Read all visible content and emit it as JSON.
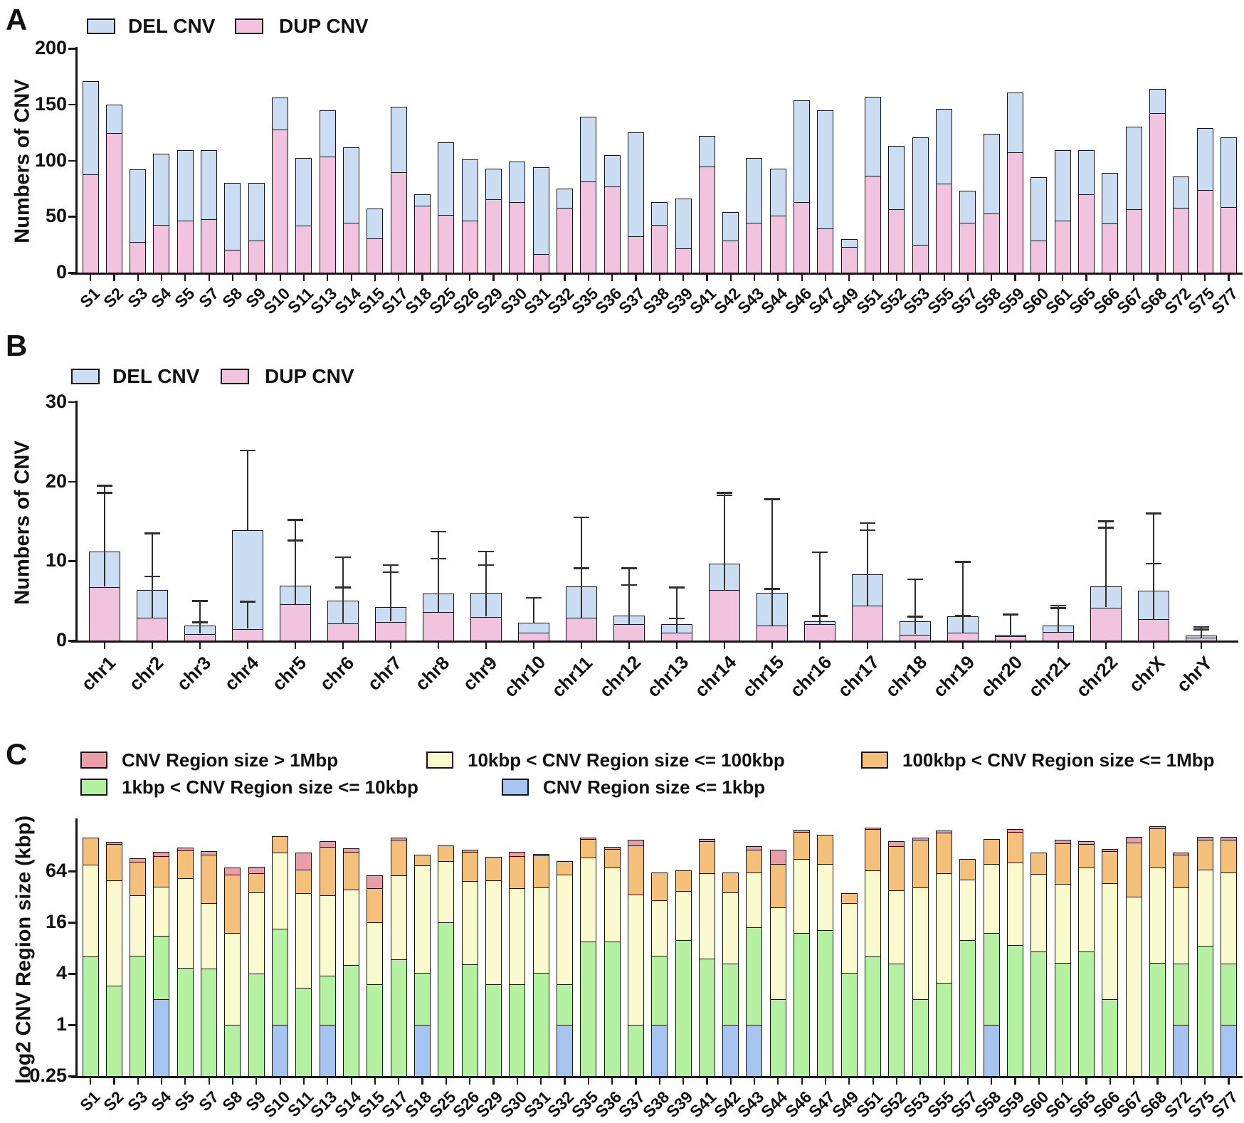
{
  "figure": {
    "panels": [
      {
        "letter": "A",
        "ylabel": "Numbers of CNV"
      },
      {
        "letter": "B",
        "ylabel": "Numbers of CNV"
      },
      {
        "letter": "C",
        "ylabel": "log2 CNV Region size (kbp)"
      }
    ]
  },
  "chart_data": [
    {
      "panel": "A",
      "type": "bar",
      "stacked": true,
      "title": "",
      "ylabel": "Numbers of CNV",
      "ylim": [
        0,
        200
      ],
      "yticks": [
        0,
        50,
        100,
        150,
        200
      ],
      "legend_position": "top-left",
      "legend_order": [
        "DEL CNV",
        "DUP CNV"
      ],
      "categories": [
        "S1",
        "S2",
        "S3",
        "S4",
        "S5",
        "S7",
        "S8",
        "S9",
        "S10",
        "S11",
        "S13",
        "S14",
        "S15",
        "S17",
        "S18",
        "S25",
        "S26",
        "S29",
        "S30",
        "S31",
        "S32",
        "S35",
        "S36",
        "S37",
        "S38",
        "S39",
        "S41",
        "S42",
        "S43",
        "S44",
        "S46",
        "S47",
        "S49",
        "S51",
        "S52",
        "S53",
        "S55",
        "S57",
        "S58",
        "S59",
        "S60",
        "S61",
        "S65",
        "S66",
        "S67",
        "S68",
        "S72",
        "S75",
        "S77"
      ],
      "series": [
        {
          "name": "DUP CNV",
          "color": "#F2C3DE",
          "values": [
            88,
            125,
            28,
            43,
            47,
            48,
            21,
            29,
            128,
            42,
            104,
            45,
            31,
            90,
            60,
            52,
            47,
            66,
            63,
            17,
            58,
            82,
            77,
            33,
            43,
            22,
            95,
            29,
            45,
            51,
            63,
            40,
            23,
            87,
            57,
            25,
            80,
            45,
            53,
            108,
            29,
            47,
            70,
            44,
            57,
            143,
            58,
            74,
            59
          ]
        },
        {
          "name": "DEL CNV",
          "color": "#CBDDF3",
          "values": [
            83,
            25,
            64,
            63,
            62,
            61,
            59,
            51,
            28,
            60,
            41,
            67,
            26,
            58,
            10,
            64,
            54,
            27,
            36,
            77,
            17,
            57,
            28,
            92,
            20,
            44,
            27,
            25,
            57,
            42,
            91,
            105,
            7,
            70,
            56,
            96,
            66,
            28,
            71,
            53,
            56,
            62,
            39,
            45,
            73,
            21,
            28,
            55,
            62
          ]
        }
      ]
    },
    {
      "panel": "B",
      "type": "bar",
      "stacked": true,
      "title": "",
      "ylabel": "Numbers of CNV",
      "ylim": [
        0,
        30
      ],
      "yticks": [
        0,
        10,
        20,
        30
      ],
      "legend_position": "top-left",
      "legend_order": [
        "DEL CNV",
        "DUP CNV"
      ],
      "categories": [
        "chr1",
        "chr2",
        "chr3",
        "chr4",
        "chr5",
        "chr6",
        "chr7",
        "chr8",
        "chr9",
        "chr10",
        "chr11",
        "chr12",
        "chr13",
        "chr14",
        "chr15",
        "chr16",
        "chr17",
        "chr18",
        "chr19",
        "chr20",
        "chr21",
        "chr22",
        "chrX",
        "chrY"
      ],
      "series": [
        {
          "name": "DUP CNV",
          "color": "#F2C3DE",
          "values": [
            6.8,
            2.9,
            0.9,
            1.5,
            4.6,
            2.2,
            2.4,
            3.6,
            3.0,
            1.0,
            2.9,
            2.1,
            1.0,
            6.4,
            1.9,
            2.1,
            4.4,
            0.8,
            1.0,
            0.55,
            1.1,
            4.2,
            2.7,
            0.4
          ]
        },
        {
          "name": "DEL CNV",
          "color": "#CBDDF3",
          "values": [
            4.4,
            3.5,
            1.0,
            12.4,
            2.3,
            2.8,
            1.8,
            2.3,
            3.0,
            1.2,
            3.9,
            1.0,
            1.1,
            3.3,
            4.1,
            0.3,
            3.9,
            1.6,
            2.0,
            0.15,
            0.75,
            2.6,
            3.6,
            0.25
          ]
        }
      ],
      "error_bars": {
        "total": [
          19.5,
          13.5,
          5.0,
          23.9,
          15.2,
          10.5,
          9.5,
          13.7,
          11.2,
          5.4,
          15.5,
          9.1,
          6.7,
          18.6,
          17.8,
          11.1,
          14.8,
          7.7,
          9.9,
          3.3,
          4.4,
          15.0,
          16.0,
          1.7
        ],
        "dup": [
          18.6,
          8.1,
          2.3,
          4.9,
          12.6,
          6.7,
          8.6,
          10.3,
          9.5,
          null,
          9.1,
          7.0,
          2.8,
          18.3,
          6.5,
          3.1,
          13.9,
          3.0,
          3.1,
          null,
          4.1,
          14.2,
          9.7,
          1.4
        ]
      }
    },
    {
      "panel": "C",
      "type": "bar",
      "stacked": true,
      "yscale": "log2",
      "title": "",
      "ylabel": "log2 CNV Region size (kbp)",
      "ylim": [
        0.25,
        256
      ],
      "yticks": [
        0.25,
        1,
        4,
        16,
        64
      ],
      "baseline": 0.25,
      "legend_rows": [
        [
          "CNV Region size > 1Mbp",
          "10kbp < CNV Region size <= 100kbp",
          "100kbp < CNV Region size <= 1Mbp"
        ],
        [
          "1kbp < CNV Region size <= 10kbp",
          "CNV Region size <= 1kbp"
        ]
      ],
      "categories": [
        "S1",
        "S2",
        "S3",
        "S4",
        "S5",
        "S7",
        "S8",
        "S9",
        "S10",
        "S11",
        "S13",
        "S14",
        "S15",
        "S17",
        "S18",
        "S25",
        "S26",
        "S29",
        "S30",
        "S31",
        "S32",
        "S35",
        "S36",
        "S37",
        "S38",
        "S39",
        "S41",
        "S42",
        "S43",
        "S44",
        "S46",
        "S47",
        "S49",
        "S51",
        "S52",
        "S53",
        "S55",
        "S57",
        "S58",
        "S59",
        "S60",
        "S61",
        "S65",
        "S66",
        "S67",
        "S68",
        "S72",
        "S75",
        "S77"
      ],
      "series": [
        {
          "name": "CNV Region size <= 1kbp",
          "color": "#A6C4F0",
          "cumulative_tops": [
            null,
            null,
            null,
            2.0,
            null,
            null,
            null,
            null,
            1.0,
            null,
            1.0,
            null,
            null,
            null,
            1.0,
            null,
            null,
            null,
            null,
            null,
            1.0,
            null,
            null,
            null,
            1.0,
            null,
            null,
            1.0,
            1.0,
            null,
            null,
            null,
            null,
            null,
            null,
            null,
            null,
            null,
            1.0,
            null,
            null,
            null,
            null,
            null,
            null,
            null,
            1.0,
            null,
            1.0
          ]
        },
        {
          "name": "1kbp < CNV Region size <= 10kbp",
          "color": "#B4F2A1",
          "cumulative_tops": [
            6.4,
            2.9,
            6.5,
            11,
            4.7,
            4.6,
            1.0,
            4.0,
            13.5,
            2.7,
            3.8,
            5.0,
            3.0,
            5.9,
            4.1,
            16,
            5.1,
            3.0,
            3.0,
            4.1,
            3.0,
            9.6,
            9.5,
            1.0,
            6.5,
            9.8,
            6.0,
            5.2,
            14,
            2.0,
            12,
            13,
            4.1,
            6.4,
            5.2,
            2.0,
            3.1,
            9.9,
            12,
            8.7,
            7.3,
            5.3,
            7.2,
            2.0,
            null,
            5.3,
            5.2,
            8.5,
            5.2
          ]
        },
        {
          "name": "10kbp < CNV Region size <= 100kbp",
          "color": "#FAFACF",
          "cumulative_tops": [
            76,
            50,
            33,
            42,
            53,
            27,
            12,
            36,
            105,
            35,
            33,
            39,
            16,
            57,
            75,
            84,
            49,
            50,
            40,
            41,
            58,
            92,
            70,
            34,
            29,
            37,
            60,
            36,
            61,
            24,
            88,
            78,
            27,
            65,
            38,
            41,
            60,
            51,
            77,
            80,
            59,
            45,
            70,
            46,
            32,
            71,
            41,
            67,
            62
          ]
        },
        {
          "name": "100kbp < CNV Region size <= 1Mbp",
          "color": "#F5C07A",
          "cumulative_tops": [
            158,
            132,
            82,
            95,
            112,
            100,
            58,
            60,
            165,
            66,
            122,
            108,
            40,
            150,
            100,
            128,
            108,
            94,
            96,
            97,
            84,
            153,
            117,
            128,
            62,
            65,
            145,
            62,
            114,
            77,
            185,
            172,
            35,
            200,
            125,
            150,
            180,
            88,
            152,
            185,
            105,
            135,
            133,
            110,
            138,
            205,
            100,
            150,
            148
          ]
        },
        {
          "name": "CNV Region size > 1Mbp",
          "color": "#EB9DA8",
          "cumulative_tops": [
            null,
            142,
            90,
            108,
            120,
            110,
            70,
            72,
            null,
            106,
            145,
            118,
            57,
            157,
            null,
            null,
            115,
            null,
            107,
            102,
            null,
            158,
            122,
            150,
            null,
            null,
            152,
            null,
            125,
            114,
            196,
            null,
            null,
            208,
            143,
            157,
            190,
            null,
            null,
            200,
            null,
            150,
            145,
            116,
            162,
            215,
            105,
            162,
            160
          ]
        }
      ]
    }
  ]
}
